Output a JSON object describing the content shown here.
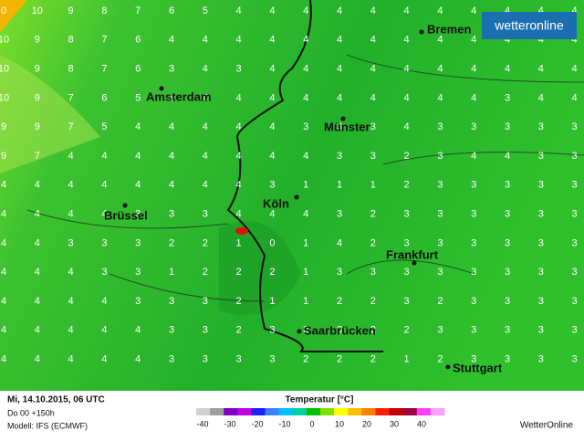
{
  "logo": "wetteronline",
  "grid": {
    "rows": [
      [
        0,
        10,
        9,
        8,
        7,
        6,
        5,
        4,
        4,
        4,
        4,
        4,
        4,
        4,
        4,
        4,
        4,
        4
      ],
      [
        10,
        9,
        8,
        7,
        6,
        4,
        4,
        4,
        4,
        4,
        4,
        4,
        4,
        4,
        4,
        4,
        4,
        4
      ],
      [
        10,
        9,
        8,
        7,
        6,
        3,
        4,
        3,
        4,
        4,
        4,
        4,
        4,
        4,
        4,
        4,
        4,
        4
      ],
      [
        10,
        9,
        7,
        6,
        5,
        4,
        4,
        4,
        4,
        4,
        4,
        4,
        4,
        4,
        4,
        3,
        4,
        4
      ],
      [
        9,
        9,
        7,
        5,
        4,
        4,
        4,
        4,
        4,
        3,
        3,
        3,
        4,
        3,
        3,
        3,
        3,
        3
      ],
      [
        9,
        7,
        4,
        4,
        4,
        4,
        4,
        4,
        4,
        4,
        3,
        3,
        2,
        3,
        4,
        4,
        3,
        3
      ],
      [
        4,
        4,
        4,
        4,
        4,
        4,
        4,
        4,
        3,
        1,
        1,
        1,
        2,
        3,
        3,
        3,
        3,
        3
      ],
      [
        4,
        4,
        4,
        4,
        3,
        3,
        3,
        4,
        4,
        4,
        3,
        2,
        3,
        3,
        3,
        3,
        3,
        3
      ],
      [
        4,
        4,
        3,
        3,
        3,
        2,
        2,
        1,
        0,
        1,
        4,
        2,
        3,
        3,
        3,
        3,
        3,
        3
      ],
      [
        4,
        4,
        4,
        3,
        3,
        1,
        2,
        2,
        2,
        1,
        3,
        3,
        3,
        3,
        3,
        3,
        3,
        3
      ],
      [
        4,
        4,
        4,
        4,
        3,
        3,
        3,
        2,
        1,
        1,
        2,
        2,
        3,
        2,
        3,
        3,
        3,
        3
      ],
      [
        4,
        4,
        4,
        4,
        4,
        3,
        3,
        2,
        3,
        3,
        3,
        2,
        2,
        3,
        3,
        3,
        3,
        3
      ],
      [
        4,
        4,
        4,
        4,
        4,
        3,
        3,
        3,
        3,
        2,
        2,
        2,
        1,
        2,
        3,
        3,
        3,
        3
      ]
    ]
  },
  "cities": [
    "Bremen",
    "Amsterdam",
    "Münster",
    "Köln",
    "Brüssel",
    "Frankfurt",
    "Saarbrücken",
    "Stuttgart"
  ],
  "footer": {
    "date": "Mi, 14.10.2015, 06 UTC",
    "run": "Do 00 +150h",
    "model": "Modell: IFS (ECMWF)",
    "brand": "WetterOnline"
  },
  "legend": {
    "title": "Temperatur [°C]",
    "ticks": [
      -40,
      -30,
      -20,
      -10,
      0,
      10,
      20,
      30,
      40
    ],
    "colors": [
      "#d0d0d0",
      "#a0a0a0",
      "#8000c0",
      "#c000e0",
      "#2020ff",
      "#4080ff",
      "#00c0ff",
      "#00d0a0",
      "#00c000",
      "#80e000",
      "#ffff00",
      "#ffc000",
      "#ff8000",
      "#ff2000",
      "#c00000",
      "#a00040",
      "#ff40ff",
      "#ffa0ff"
    ]
  }
}
